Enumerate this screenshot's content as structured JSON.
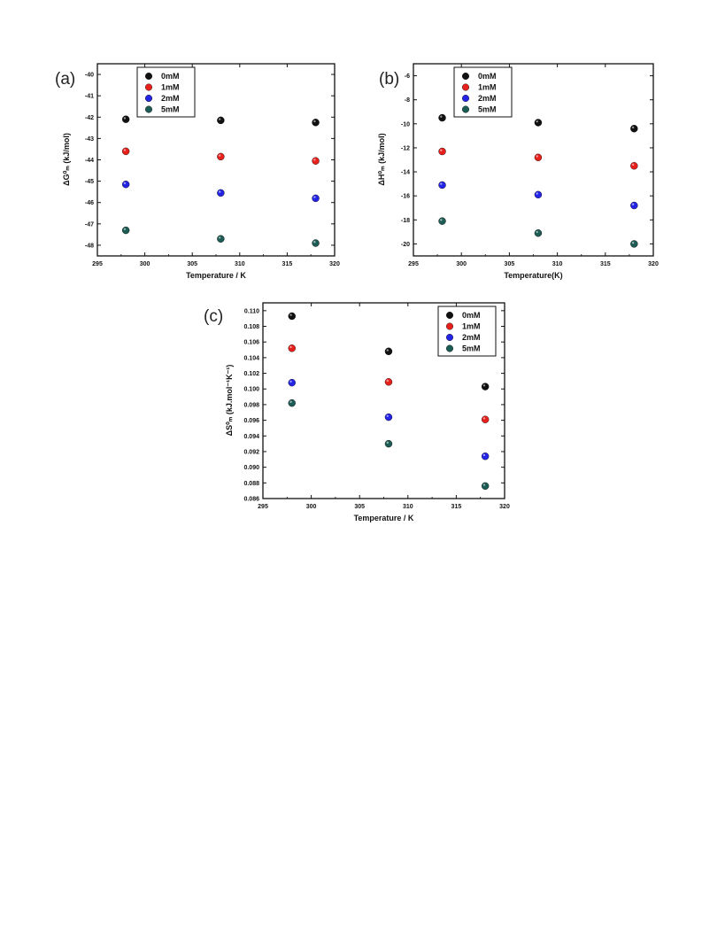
{
  "colors": {
    "0mM": "#111111",
    "1mM": "#e8201c",
    "2mM": "#2424e6",
    "5mM": "#1d5c55"
  },
  "chart_data": [
    {
      "panel_label": "(a)",
      "type": "scatter",
      "xlabel": "Temperature / K",
      "ylabel": "ΔG⁰ₘ (kJ/mol)",
      "xlim": [
        295,
        320
      ],
      "ylim": [
        -48.5,
        -39.5
      ],
      "xticks": [
        295,
        300,
        305,
        310,
        315,
        320
      ],
      "yticks": [
        -40,
        -41,
        -42,
        -43,
        -44,
        -45,
        -46,
        -47,
        -48
      ],
      "legend_position": "top-left",
      "x": [
        298,
        308,
        318
      ],
      "series": [
        {
          "name": "0mM",
          "values": [
            -42.1,
            -42.15,
            -42.25
          ]
        },
        {
          "name": "1mM",
          "values": [
            -43.6,
            -43.85,
            -44.05
          ]
        },
        {
          "name": "2mM",
          "values": [
            -45.15,
            -45.55,
            -45.8
          ]
        },
        {
          "name": "5mM",
          "values": [
            -47.3,
            -47.7,
            -47.9
          ]
        }
      ]
    },
    {
      "panel_label": "(b)",
      "type": "scatter",
      "xlabel": "Temperature(K)",
      "ylabel": "ΔH⁰ₘ (kJ/mol)",
      "xlim": [
        295,
        320
      ],
      "ylim": [
        -21,
        -5
      ],
      "xticks": [
        295,
        300,
        305,
        310,
        315,
        320
      ],
      "yticks": [
        -6,
        -8,
        -10,
        -12,
        -14,
        -16,
        -18,
        -20
      ],
      "legend_position": "top-left",
      "x": [
        298,
        308,
        318
      ],
      "series": [
        {
          "name": "0mM",
          "values": [
            -9.5,
            -9.9,
            -10.4
          ]
        },
        {
          "name": "1mM",
          "values": [
            -12.3,
            -12.8,
            -13.5
          ]
        },
        {
          "name": "2mM",
          "values": [
            -15.1,
            -15.9,
            -16.8
          ]
        },
        {
          "name": "5mM",
          "values": [
            -18.1,
            -19.1,
            -20.0
          ]
        }
      ]
    },
    {
      "panel_label": "(c)",
      "type": "scatter",
      "xlabel": "Temperature / K",
      "ylabel": "ΔS⁰ₘ (kJ.mol⁻¹K⁻¹)",
      "xlim": [
        295,
        320
      ],
      "ylim": [
        0.086,
        0.111
      ],
      "xticks": [
        295,
        300,
        305,
        310,
        315,
        320
      ],
      "yticks": [
        0.086,
        0.088,
        0.09,
        0.092,
        0.094,
        0.096,
        0.098,
        0.1,
        0.102,
        0.104,
        0.106,
        0.108,
        0.11
      ],
      "ytick_labels": [
        "0.086",
        "0.088",
        "0.090",
        "0.092",
        "0.094",
        "0.096",
        "0.098",
        "0.100",
        "0.102",
        "0.104",
        "0.106",
        "0.108",
        "0.110"
      ],
      "legend_position": "top-right",
      "x": [
        298,
        308,
        318
      ],
      "series": [
        {
          "name": "0mM",
          "values": [
            0.1093,
            0.1048,
            0.1003
          ]
        },
        {
          "name": "1mM",
          "values": [
            0.1052,
            0.1009,
            0.0961
          ]
        },
        {
          "name": "2mM",
          "values": [
            0.1008,
            0.0964,
            0.0914
          ]
        },
        {
          "name": "5mM",
          "values": [
            0.0982,
            0.093,
            0.0876
          ]
        }
      ]
    }
  ]
}
